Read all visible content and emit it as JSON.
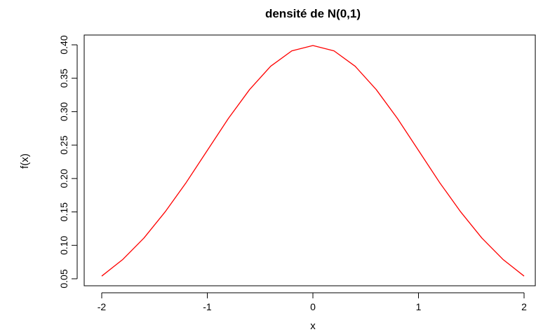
{
  "chart_data": {
    "type": "line",
    "title": "densité de N(0,1)",
    "xlabel": "x",
    "ylabel": "f(x)",
    "xlim": [
      -2,
      2
    ],
    "ylim": [
      0.05,
      0.4
    ],
    "x_ticks": [
      "-2",
      "-1",
      "0",
      "1",
      "2"
    ],
    "y_ticks": [
      "0.05",
      "0.10",
      "0.15",
      "0.20",
      "0.25",
      "0.30",
      "0.35",
      "0.40"
    ],
    "grid": false,
    "series": [
      {
        "color": "#ff0000",
        "x": [
          -2.0,
          -1.8,
          -1.6,
          -1.4,
          -1.2,
          -1.0,
          -0.8,
          -0.6,
          -0.4,
          -0.2,
          0.0,
          0.2,
          0.4,
          0.6,
          0.8,
          1.0,
          1.2,
          1.4,
          1.6,
          1.8,
          2.0
        ],
        "y": [
          0.054,
          0.079,
          0.111,
          0.15,
          0.194,
          0.242,
          0.29,
          0.333,
          0.368,
          0.391,
          0.399,
          0.391,
          0.368,
          0.333,
          0.29,
          0.242,
          0.194,
          0.15,
          0.111,
          0.079,
          0.054
        ]
      }
    ]
  }
}
